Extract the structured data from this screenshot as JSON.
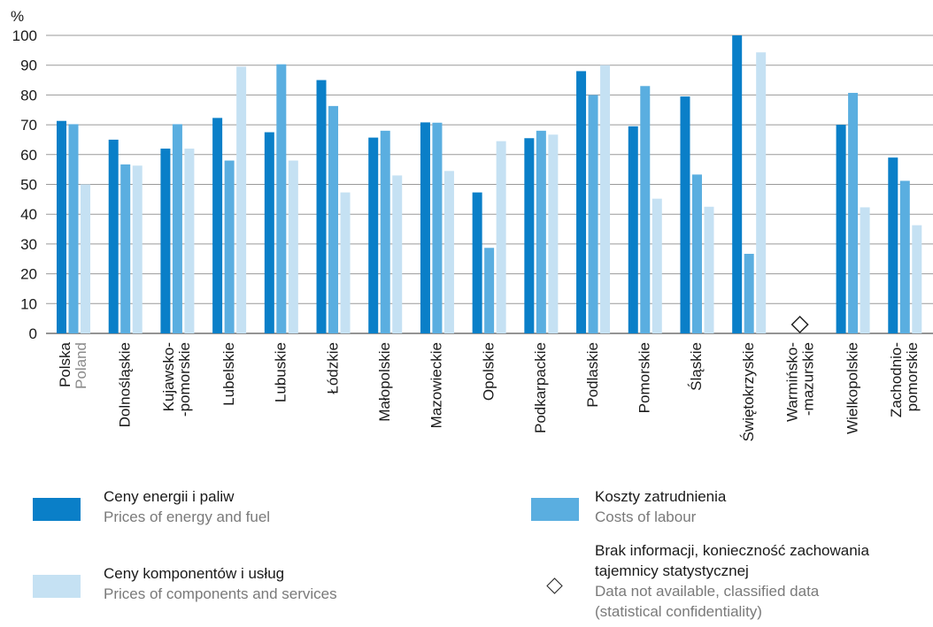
{
  "chart_data": {
    "type": "bar",
    "yunit": "%",
    "ylim": [
      0,
      100
    ],
    "yticks": [
      0,
      10,
      20,
      30,
      40,
      50,
      60,
      70,
      80,
      90,
      100
    ],
    "grid": true,
    "categories": [
      {
        "lines": [
          "Polska",
          "Poland"
        ]
      },
      {
        "lines": [
          "Dolnośląskie"
        ]
      },
      {
        "lines": [
          "Kujawsko-",
          "-pomorskie"
        ]
      },
      {
        "lines": [
          "Lubelskie"
        ]
      },
      {
        "lines": [
          "Lubuskie"
        ]
      },
      {
        "lines": [
          "Łódzkie"
        ]
      },
      {
        "lines": [
          "Małopolskie"
        ]
      },
      {
        "lines": [
          "Mazowieckie"
        ]
      },
      {
        "lines": [
          "Opolskie"
        ]
      },
      {
        "lines": [
          "Podkarpackie"
        ]
      },
      {
        "lines": [
          "Podlaskie"
        ]
      },
      {
        "lines": [
          "Pomorskie"
        ]
      },
      {
        "lines": [
          "Śląskie"
        ]
      },
      {
        "lines": [
          "Świętokrzyskie"
        ]
      },
      {
        "lines": [
          "Warmińsko-",
          "-mazurskie"
        ]
      },
      {
        "lines": [
          "Wielkopolskie"
        ]
      },
      {
        "lines": [
          "Zachodnio-",
          "pomorskie"
        ]
      }
    ],
    "no_data_marker_index": 14,
    "series": [
      {
        "name": "Ceny energii i paliw",
        "name_en": "Prices of energy and fuel",
        "color": "#0a7fc8",
        "values": [
          71.3,
          65,
          62,
          72.3,
          67.5,
          85,
          65.7,
          70.8,
          47.3,
          65.5,
          88,
          69.5,
          79.5,
          100,
          null,
          70,
          59
        ]
      },
      {
        "name": "Koszty zatrudnienia",
        "name_en": "Costs of labour",
        "color": "#5aaee0",
        "values": [
          70.2,
          56.7,
          70.2,
          58,
          90.3,
          76.3,
          68,
          70.7,
          28.7,
          68,
          80,
          83,
          53.3,
          26.7,
          null,
          80.7,
          51.2
        ]
      },
      {
        "name": "Ceny komponentów i usług",
        "name_en": "Prices of components and services",
        "color": "#c5e1f3",
        "values": [
          50,
          56.3,
          62,
          89.5,
          58,
          47.3,
          53,
          54.5,
          64.5,
          66.7,
          90,
          45.2,
          42.5,
          94.3,
          null,
          42.3,
          36.3
        ]
      }
    ],
    "legend_no_data": {
      "lines_pl": [
        "Brak informacji, konieczność zachowania",
        "tajemnicy statystycznej"
      ],
      "lines_en": [
        "Data not available,  classified data",
        "(statistical confidentiality)"
      ]
    }
  }
}
